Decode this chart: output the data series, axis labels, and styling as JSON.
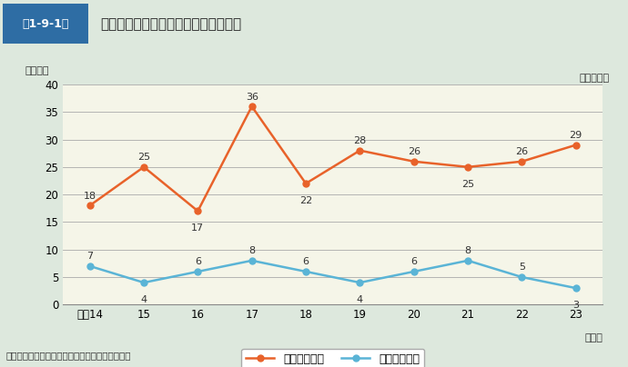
{
  "title": "トンネル内車両・施設火災件数の推移",
  "title_box": "第1-9-1図",
  "ylabel": "（件数）",
  "xlabel_note": "（年）",
  "note": "（各年中）",
  "footnote": "（備考）「特殊災害対策の実態調査」により作成",
  "x_labels": [
    "平成14",
    "15",
    "16",
    "17",
    "18",
    "19",
    "20",
    "21",
    "22",
    "23"
  ],
  "road_values": [
    18,
    25,
    17,
    36,
    22,
    28,
    26,
    25,
    26,
    29
  ],
  "rail_values": [
    7,
    4,
    6,
    8,
    6,
    4,
    6,
    8,
    5,
    3
  ],
  "road_color": "#e8622a",
  "rail_color": "#5ab4d6",
  "road_label": "道路トンネル",
  "rail_label": "鉄道トンネル",
  "ylim": [
    0,
    40
  ],
  "yticks": [
    0,
    5,
    10,
    15,
    20,
    25,
    30,
    35,
    40
  ],
  "bg_color": "#e8ede8",
  "plot_bg_color": "#f5f5e8",
  "header_bg": "#e0e8e0",
  "title_box_bg": "#2e6da4",
  "title_box_text": "#ffffff",
  "outer_bg": "#dde8dd"
}
